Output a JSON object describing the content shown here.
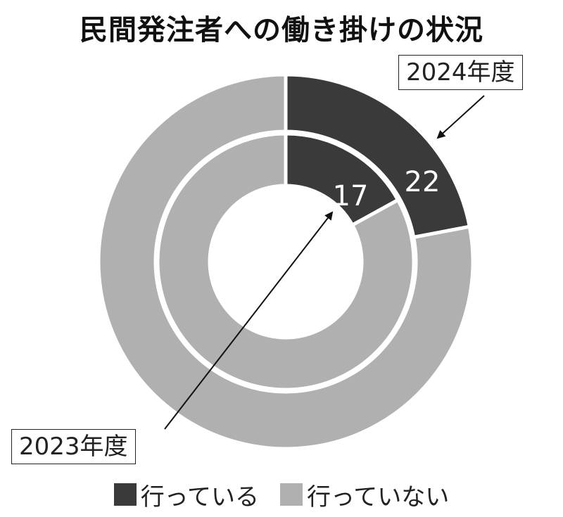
{
  "chart_data": {
    "type": "pie",
    "title": "民間発注者への働き掛けの状況",
    "colors": {
      "doing": "#3a3a3a",
      "not_doing": "#b0b0b0"
    },
    "legend": [
      "行っている",
      "行っていない"
    ],
    "legend_placement": "bottom",
    "series": [
      {
        "name": "2024年度",
        "ring": "outer",
        "values": [
          22,
          78
        ],
        "label": "22"
      },
      {
        "name": "2023年度",
        "ring": "inner",
        "values": [
          17,
          83
        ],
        "label": "17"
      }
    ]
  }
}
